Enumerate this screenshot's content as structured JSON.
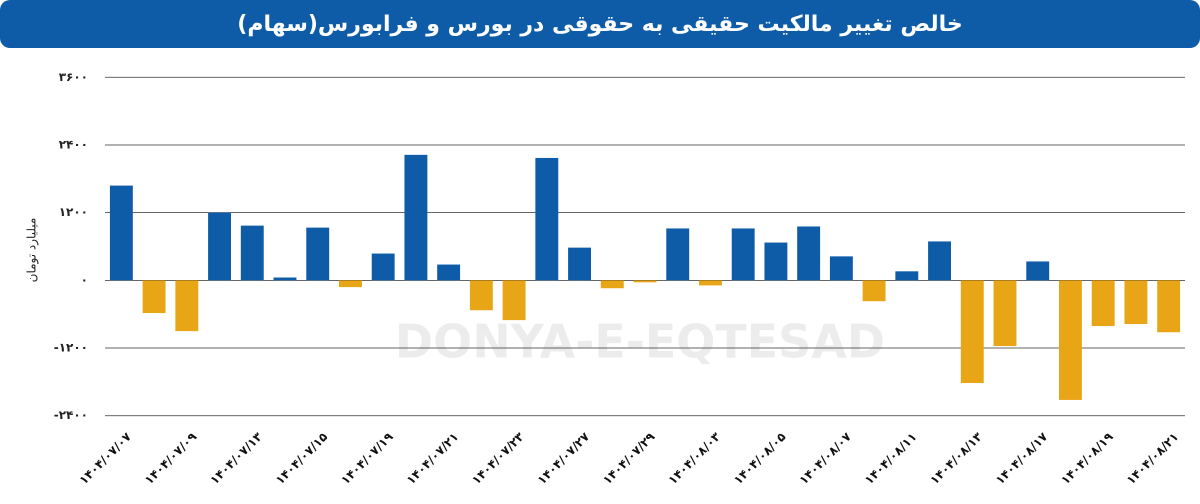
{
  "chart_data": {
    "type": "bar",
    "title": "خالص تغییر مالکیت حقیقی به حقوقی در بورس و فرابورس(سهام)",
    "y_label": "میلیارد تومان",
    "watermark": "DONYA-E-EQTESAD",
    "categories": [
      "۱۴۰۴/۰۷/۰۷",
      null,
      "۱۴۰۴/۰۷/۰۹",
      null,
      "۱۴۰۴/۰۷/۱۳",
      null,
      "۱۴۰۴/۰۷/۱۵",
      null,
      "۱۴۰۴/۰۷/۱۹",
      null,
      "۱۴۰۴/۰۷/۲۱",
      null,
      "۱۴۰۴/۰۷/۲۳",
      null,
      "۱۴۰۴/۰۷/۲۷",
      null,
      "۱۴۰۴/۰۷/۲۹",
      null,
      "۱۴۰۴/۰۸/۰۳",
      null,
      "۱۴۰۴/۰۸/۰۵",
      null,
      "۱۴۰۴/۰۸/۰۷",
      null,
      "۱۴۰۴/۰۸/۱۱",
      null,
      "۱۴۰۴/۰۸/۱۳",
      null,
      "۱۴۰۴/۰۸/۱۷",
      null,
      "۱۴۰۴/۰۸/۱۹",
      null,
      "۱۴۰۴/۰۸/۲۱"
    ],
    "values": [
      1680,
      -580,
      -900,
      1200,
      970,
      50,
      935,
      -120,
      475,
      2225,
      280,
      -530,
      -705,
      2170,
      580,
      -140,
      -35,
      920,
      -90,
      920,
      670,
      955,
      425,
      -370,
      160,
      690,
      -1820,
      -1165,
      335,
      -2120,
      -810,
      -775,
      -920
    ],
    "positive_color": "#0e5ca8",
    "negative_color": "#e8a617",
    "ylim": [
      -2600,
      3800
    ],
    "yticks": [
      {
        "value": -2400,
        "label": "-۲۴۰۰"
      },
      {
        "value": -1200,
        "label": "-۱۲۰۰"
      },
      {
        "value": 0,
        "label": "۰"
      },
      {
        "value": 1200,
        "label": "۱۲۰۰"
      },
      {
        "value": 2400,
        "label": "۲۴۰۰"
      },
      {
        "value": 3600,
        "label": "۳۶۰۰"
      }
    ],
    "grid": true
  }
}
